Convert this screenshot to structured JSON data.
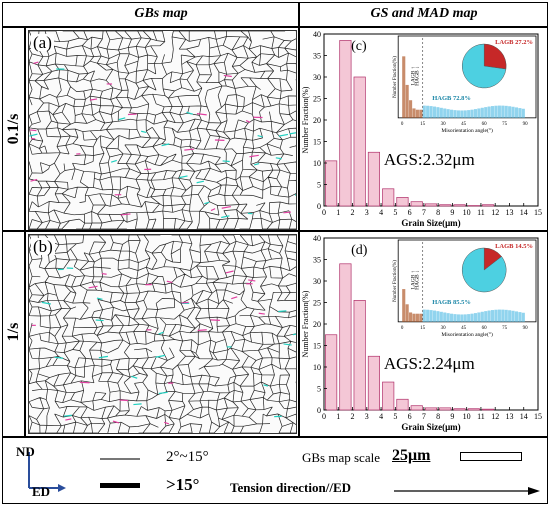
{
  "headers": {
    "left": "GBs map",
    "right": "GS and MAD map"
  },
  "rows": [
    {
      "rate": "0.1/s",
      "map_label": "(a)",
      "chart_label": "(c)"
    },
    {
      "rate": "1/s",
      "map_label": "(b)",
      "chart_label": "(d)"
    }
  ],
  "legend": {
    "axis_nd": "ND",
    "axis_ed": "ED",
    "thin_line_label": "2°~15°",
    "thick_line_label": ">15°",
    "scale_label": "GBs map scale",
    "scale_value": "25μm",
    "tension_label": "Tension direction//ED"
  },
  "colors": {
    "bar_fill": "#f4c7d6",
    "bar_edge": "#b0306a",
    "lagb": "#c62828",
    "hagb": "#4dd0e1",
    "inset_bar": "#6cc6e8"
  },
  "chart_data": [
    {
      "type": "bar",
      "categories": [
        "0",
        "1",
        "2",
        "3",
        "4",
        "5",
        "6",
        "7",
        "8",
        "9",
        "10",
        "11",
        "12",
        "13",
        "14",
        "15"
      ],
      "values": [
        10.5,
        38.5,
        30,
        12.5,
        4,
        2,
        1,
        0.5,
        0.3,
        0.3,
        0.1,
        0.3,
        0,
        0,
        0,
        0
      ],
      "xlabel": "Grain Size(μm)",
      "ylabel": "Number Fraction(%)",
      "ylim": [
        0,
        40
      ],
      "yticks": [
        "0",
        "5",
        "10",
        "15",
        "20",
        "25",
        "30",
        "35",
        "40"
      ],
      "ags_label": "AGS:2.32μm",
      "inset": {
        "type": "bar",
        "xlabel": "Misorientation angle(°)",
        "ylabel": "Number Fraction(%)",
        "xticks": [
          "0",
          "15",
          "30",
          "45",
          "60",
          "75",
          "90"
        ],
        "lagb_arrow": "LAGB",
        "hagb_arrow": "HAGB",
        "pie": [
          {
            "name": "LAGB",
            "label": "LAGB 27.2%",
            "value": 27.2
          },
          {
            "name": "HAGB",
            "label": "HAGB 72.8%",
            "value": 72.8
          }
        ]
      }
    },
    {
      "type": "bar",
      "categories": [
        "0",
        "1",
        "2",
        "3",
        "4",
        "5",
        "6",
        "7",
        "8",
        "9",
        "10",
        "11",
        "12",
        "13",
        "14",
        "15"
      ],
      "values": [
        17.5,
        34,
        25.5,
        12.5,
        6.5,
        2.5,
        1,
        0.5,
        0.5,
        0.3,
        0.3,
        0.2,
        0,
        0,
        0,
        0
      ],
      "xlabel": "Grain Size(μm)",
      "ylabel": "Number Fraction(%)",
      "ylim": [
        0,
        40
      ],
      "yticks": [
        "0",
        "5",
        "10",
        "15",
        "20",
        "25",
        "30",
        "35",
        "40"
      ],
      "ags_label": "AGS:2.24μm",
      "inset": {
        "type": "bar",
        "xlabel": "Misorientation angle(°)",
        "ylabel": "Number Fraction(%)",
        "xticks": [
          "0",
          "15",
          "30",
          "45",
          "60",
          "75",
          "90"
        ],
        "lagb_arrow": "LAGB",
        "hagb_arrow": "HAGB",
        "pie": [
          {
            "name": "LAGB",
            "label": "LAGB 14.5%",
            "value": 14.5
          },
          {
            "name": "HAGB",
            "label": "HAGB 85.5%",
            "value": 85.5
          }
        ]
      }
    }
  ]
}
